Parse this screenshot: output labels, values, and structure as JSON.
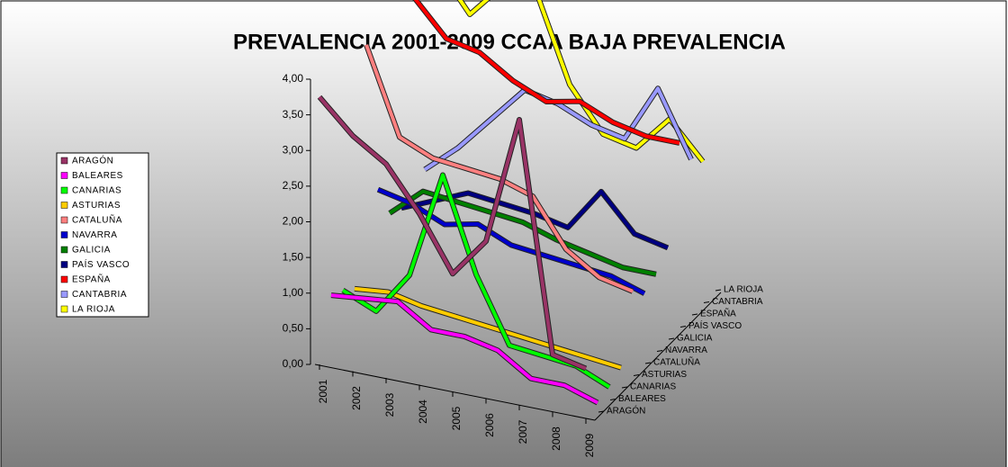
{
  "chart_data": {
    "type": "line3d",
    "title": "PREVALENCIA 2001-2009 CCAA BAJA PREVALENCIA",
    "categories": [
      "2001",
      "2002",
      "2003",
      "2004",
      "2005",
      "2006",
      "2007",
      "2008",
      "2009"
    ],
    "ylim": [
      0,
      4
    ],
    "yticks": [
      {
        "value": 0,
        "label": "0,00"
      },
      {
        "value": 0.5,
        "label": "0,50"
      },
      {
        "value": 1,
        "label": "1,00"
      },
      {
        "value": 1.5,
        "label": "1,50"
      },
      {
        "value": 2,
        "label": "2,00"
      },
      {
        "value": 2.5,
        "label": "2,50"
      },
      {
        "value": 3,
        "label": "3,00"
      },
      {
        "value": 3.5,
        "label": "3,50"
      },
      {
        "value": 4,
        "label": "4,00"
      }
    ],
    "series": [
      {
        "name": "ARAGÓN",
        "color": "#993366",
        "values": [
          3.75,
          3.3,
          3.0,
          2.4,
          1.65,
          2.2,
          4.0,
          0.8,
          0.7
        ]
      },
      {
        "name": "BALEARES",
        "color": "#ff00ff",
        "values": [
          0.8,
          0.85,
          0.9,
          0.6,
          0.6,
          0.5,
          0.2,
          0.2,
          0.05
        ]
      },
      {
        "name": "CANARIAS",
        "color": "#00ff00",
        "values": [
          0.7,
          0.5,
          1.1,
          2.6,
          1.3,
          0.4,
          0.35,
          0.3,
          0.1
        ]
      },
      {
        "name": "ASTURIAS",
        "color": "#ffcc00",
        "values": [
          0.55,
          0.6,
          0.5,
          0.45,
          0.4,
          0.35,
          0.3,
          0.25,
          0.2
        ]
      },
      {
        "name": "CATALUÑA",
        "color": "#ff8080",
        "values": [
          3.8,
          2.6,
          2.4,
          2.35,
          2.3,
          2.15,
          1.5,
          1.2,
          1.1
        ]
      },
      {
        "name": "NAVARRA",
        "color": "#0000cc",
        "values": [
          1.6,
          1.5,
          1.3,
          1.4,
          1.2,
          1.15,
          1.1,
          1.05,
          0.9
        ]
      },
      {
        "name": "GALICIA",
        "color": "#008000",
        "values": [
          1.1,
          1.5,
          1.45,
          1.4,
          1.35,
          1.2,
          1.1,
          1.0,
          1.0
        ]
      },
      {
        "name": "PAÍS VASCO",
        "color": "#000080",
        "values": [
          1.0,
          1.2,
          1.4,
          1.35,
          1.3,
          1.2,
          1.8,
          1.3,
          1.2
        ]
      },
      {
        "name": "ESPAÑA",
        "color": "#ff0000",
        "values": [
          3.8,
          3.3,
          3.2,
          2.9,
          2.7,
          2.8,
          2.6,
          2.5,
          2.5
        ]
      },
      {
        "name": "CANTABRIA",
        "color": "#9999ff",
        "values": [
          1.2,
          1.6,
          2.1,
          2.6,
          2.5,
          2.3,
          2.2,
          3.0,
          2.1
        ]
      },
      {
        "name": "LA RIOJA",
        "color": "#ffff00",
        "values": [
          3.9,
          3.3,
          3.8,
          3.8,
          2.6,
          2.0,
          1.9,
          2.4,
          1.9
        ]
      }
    ]
  }
}
